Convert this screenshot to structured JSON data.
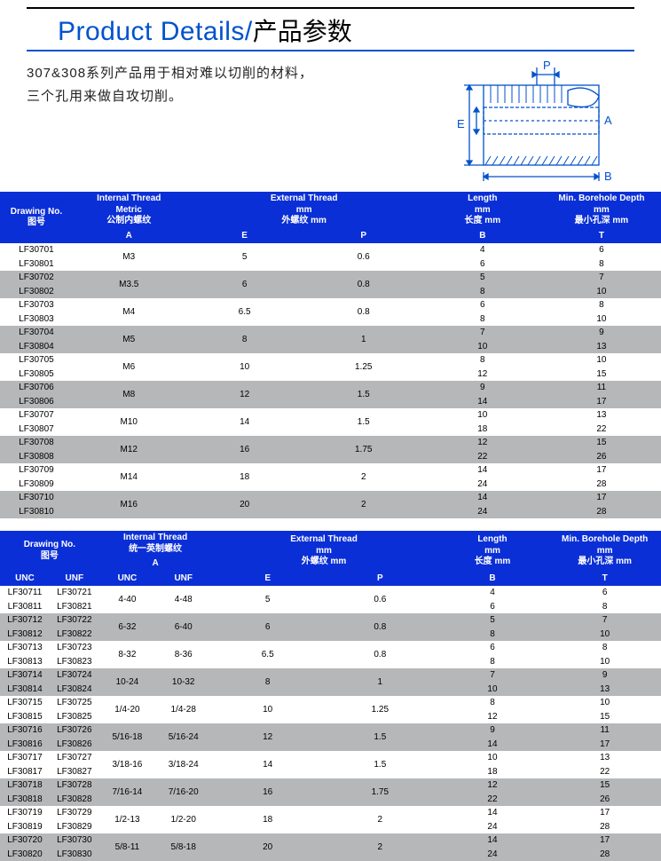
{
  "title": {
    "en": "Product Details/",
    "cn": "产品参数"
  },
  "desc": {
    "line1": "307&308系列产品用于相对难以切削的材料，",
    "line2": "三个孔用来做自攻切削。"
  },
  "diagram": {
    "stroke": "#0052cc",
    "labels": {
      "P": "P",
      "E": "E",
      "A": "A",
      "B": "B"
    }
  },
  "table1": {
    "head": {
      "dn": {
        "en": "Drawing No.",
        "cn": "图号"
      },
      "it": {
        "en": "Internal Thread",
        "sub": "Metric",
        "cn": "公制内螺纹",
        "a": "A"
      },
      "et": {
        "en": "External Thread",
        "sub": "mm",
        "cn": "外螺纹 mm",
        "e": "E",
        "p": "P"
      },
      "len": {
        "en": "Length",
        "sub": "mm",
        "cn": "长度 mm",
        "b": "B"
      },
      "mbd": {
        "en": "Min. Borehole Depth",
        "sub": "mm",
        "cn": "最小孔深 mm",
        "t": "T"
      }
    },
    "rows": [
      {
        "dn1": "LF30701",
        "dn2": "LF30801",
        "a": "M3",
        "e": "5",
        "p": "0.6",
        "b1": "4",
        "b2": "6",
        "t1": "6",
        "t2": "8",
        "shade": "l"
      },
      {
        "dn1": "LF30702",
        "dn2": "LF30802",
        "a": "M3.5",
        "e": "6",
        "p": "0.8",
        "b1": "5",
        "b2": "8",
        "t1": "7",
        "t2": "10",
        "shade": "d"
      },
      {
        "dn1": "LF30703",
        "dn2": "LF30803",
        "a": "M4",
        "e": "6.5",
        "p": "0.8",
        "b1": "6",
        "b2": "8",
        "t1": "8",
        "t2": "10",
        "shade": "l"
      },
      {
        "dn1": "LF30704",
        "dn2": "LF30804",
        "a": "M5",
        "e": "8",
        "p": "1",
        "b1": "7",
        "b2": "10",
        "t1": "9",
        "t2": "13",
        "shade": "d"
      },
      {
        "dn1": "LF30705",
        "dn2": "LF30805",
        "a": "M6",
        "e": "10",
        "p": "1.25",
        "b1": "8",
        "b2": "12",
        "t1": "10",
        "t2": "15",
        "shade": "l"
      },
      {
        "dn1": "LF30706",
        "dn2": "LF30806",
        "a": "M8",
        "e": "12",
        "p": "1.5",
        "b1": "9",
        "b2": "14",
        "t1": "11",
        "t2": "17",
        "shade": "d"
      },
      {
        "dn1": "LF30707",
        "dn2": "LF30807",
        "a": "M10",
        "e": "14",
        "p": "1.5",
        "b1": "10",
        "b2": "18",
        "t1": "13",
        "t2": "22",
        "shade": "l"
      },
      {
        "dn1": "LF30708",
        "dn2": "LF30808",
        "a": "M12",
        "e": "16",
        "p": "1.75",
        "b1": "12",
        "b2": "22",
        "t1": "15",
        "t2": "26",
        "shade": "d"
      },
      {
        "dn1": "LF30709",
        "dn2": "LF30809",
        "a": "M14",
        "e": "18",
        "p": "2",
        "b1": "14",
        "b2": "24",
        "t1": "17",
        "t2": "28",
        "shade": "l"
      },
      {
        "dn1": "LF30710",
        "dn2": "LF30810",
        "a": "M16",
        "e": "20",
        "p": "2",
        "b1": "14",
        "b2": "24",
        "t1": "17",
        "t2": "28",
        "shade": "d"
      }
    ]
  },
  "table2": {
    "head": {
      "dn": {
        "en": "Drawing No.",
        "cn": "图号",
        "unc": "UNC",
        "unf": "UNF"
      },
      "it": {
        "en": "Internal Thread",
        "cn": "统一英制螺纹",
        "a": "A",
        "unc": "UNC",
        "unf": "UNF"
      },
      "et": {
        "en": "External Thread",
        "sub": "mm",
        "cn": "外螺纹 mm",
        "e": "E",
        "p": "P"
      },
      "len": {
        "en": "Length",
        "sub": "mm",
        "cn": "长度 mm",
        "b": "B"
      },
      "mbd": {
        "en": "Min. Borehole Depth",
        "sub": "mm",
        "cn": "最小孔深 mm",
        "t": "T"
      }
    },
    "rows": [
      {
        "unc1": "LF30711",
        "unc2": "LF30811",
        "unf1": "LF30721",
        "unf2": "LF30821",
        "a1": "4-40",
        "a2": "4-48",
        "e": "5",
        "p": "0.6",
        "b1": "4",
        "b2": "6",
        "t1": "6",
        "t2": "8",
        "shade": "l"
      },
      {
        "unc1": "LF30712",
        "unc2": "LF30812",
        "unf1": "LF30722",
        "unf2": "LF30822",
        "a1": "6-32",
        "a2": "6-40",
        "e": "6",
        "p": "0.8",
        "b1": "5",
        "b2": "8",
        "t1": "7",
        "t2": "10",
        "shade": "d"
      },
      {
        "unc1": "LF30713",
        "unc2": "LF30813",
        "unf1": "LF30723",
        "unf2": "LF30823",
        "a1": "8-32",
        "a2": "8-36",
        "e": "6.5",
        "p": "0.8",
        "b1": "6",
        "b2": "8",
        "t1": "8",
        "t2": "10",
        "shade": "l"
      },
      {
        "unc1": "LF30714",
        "unc2": "LF30814",
        "unf1": "LF30724",
        "unf2": "LF30824",
        "a1": "10-24",
        "a2": "10-32",
        "e": "8",
        "p": "1",
        "b1": "7",
        "b2": "10",
        "t1": "9",
        "t2": "13",
        "shade": "d"
      },
      {
        "unc1": "LF30715",
        "unc2": "LF30815",
        "unf1": "LF30725",
        "unf2": "LF30825",
        "a1": "1/4-20",
        "a2": "1/4-28",
        "e": "10",
        "p": "1.25",
        "b1": "8",
        "b2": "12",
        "t1": "10",
        "t2": "15",
        "shade": "l"
      },
      {
        "unc1": "LF30716",
        "unc2": "LF30816",
        "unf1": "LF30726",
        "unf2": "LF30826",
        "a1": "5/16-18",
        "a2": "5/16-24",
        "e": "12",
        "p": "1.5",
        "b1": "9",
        "b2": "14",
        "t1": "11",
        "t2": "17",
        "shade": "d"
      },
      {
        "unc1": "LF30717",
        "unc2": "LF30817",
        "unf1": "LF30727",
        "unf2": "LF30827",
        "a1": "3/18-16",
        "a2": "3/18-24",
        "e": "14",
        "p": "1.5",
        "b1": "10",
        "b2": "18",
        "t1": "13",
        "t2": "22",
        "shade": "l"
      },
      {
        "unc1": "LF30718",
        "unc2": "LF30818",
        "unf1": "LF30728",
        "unf2": "LF30828",
        "a1": "7/16-14",
        "a2": "7/16-20",
        "e": "16",
        "p": "1.75",
        "b1": "12",
        "b2": "22",
        "t1": "15",
        "t2": "26",
        "shade": "d"
      },
      {
        "unc1": "LF30719",
        "unc2": "LF30819",
        "unf1": "LF30729",
        "unf2": "LF30829",
        "a1": "1/2-13",
        "a2": "1/2-20",
        "e": "18",
        "p": "2",
        "b1": "14",
        "b2": "24",
        "t1": "17",
        "t2": "28",
        "shade": "l"
      },
      {
        "unc1": "LF30720",
        "unc2": "LF30820",
        "unf1": "LF30730",
        "unf2": "LF30830",
        "a1": "5/8-11",
        "a2": "5/8-18",
        "e": "20",
        "p": "2",
        "b1": "14",
        "b2": "24",
        "t1": "17",
        "t2": "28",
        "shade": "d"
      }
    ]
  }
}
